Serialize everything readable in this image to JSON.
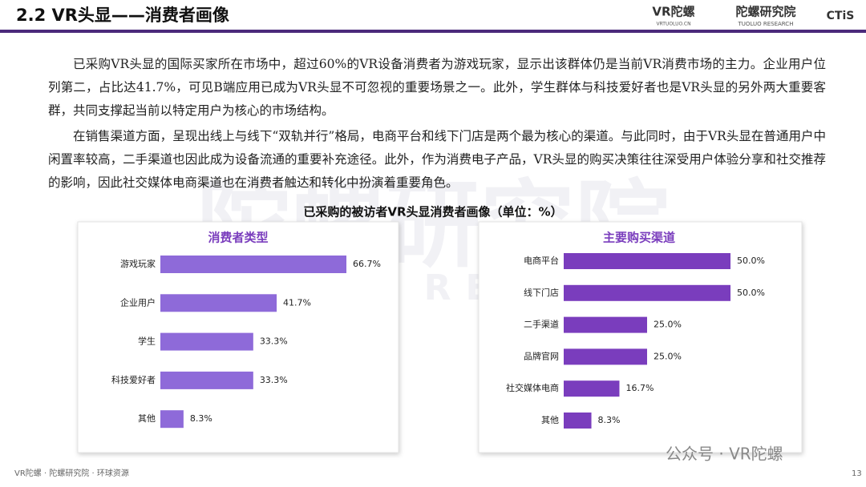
{
  "header": {
    "title": "2.2 VR头显——消费者画像",
    "brands": [
      "VR陀螺",
      "VRTUOLUO.CN",
      "陀螺研究院",
      "TUOLUO RESEARCH",
      "CTiS"
    ]
  },
  "paragraphs": [
    "已采购VR头显的国际买家所在市场中，超过60%的VR设备消费者为游戏玩家，显示出该群体仍是当前VR消费市场的主力。企业用户位列第二，占比达41.7%，可见B端应用已成为VR头显不可忽视的重要场景之一。此外，学生群体与科技爱好者也是VR头显的另外两大重要客群，共同支撑起当前以特定用户为核心的市场结构。",
    "在销售渠道方面，呈现出线上与线下“双轨并行”格局，电商平台和线下门店是两个最为核心的渠道。与此同时，由于VR头显在普通用户中闲置率较高，二手渠道也因此成为设备流通的重要补充途径。此外，作为消费电子产品，VR头显的购买决策往往深受用户体验分享和社交推荐的影响，因此社交媒体电商渠道也在消费者触达和转化中扮演着重要角色。"
  ],
  "figure_title": "已采购的被访者VR头显消费者画像（单位：%）",
  "watermark": [
    "陀螺研究院",
    "TUOLUO RESEARCH"
  ],
  "chart_data": [
    {
      "type": "bar",
      "orientation": "horizontal",
      "title": "消费者类型",
      "color": "#8e6ad9",
      "categories": [
        "游戏玩家",
        "企业用户",
        "学生",
        "科技爱好者",
        "其他"
      ],
      "values": [
        66.7,
        41.7,
        33.3,
        33.3,
        8.3
      ],
      "value_labels": [
        "66.7%",
        "41.7%",
        "33.3%",
        "33.3%",
        "8.3%"
      ]
    },
    {
      "type": "bar",
      "orientation": "horizontal",
      "title": "主要购买渠道",
      "color": "#7a3dbd",
      "categories": [
        "电商平台",
        "线下门店",
        "二手渠道",
        "品牌官网",
        "社交媒体电商",
        "其他"
      ],
      "values": [
        50.0,
        50.0,
        25.0,
        25.0,
        16.7,
        8.3
      ],
      "value_labels": [
        "50.0%",
        "50.0%",
        "25.0%",
        "25.0%",
        "16.7%",
        "8.3%"
      ]
    }
  ],
  "footer": {
    "source": "VR陀螺 · 陀螺研究院 · 环球资源",
    "wechat": "公众号 · VR陀螺",
    "page": "13"
  }
}
